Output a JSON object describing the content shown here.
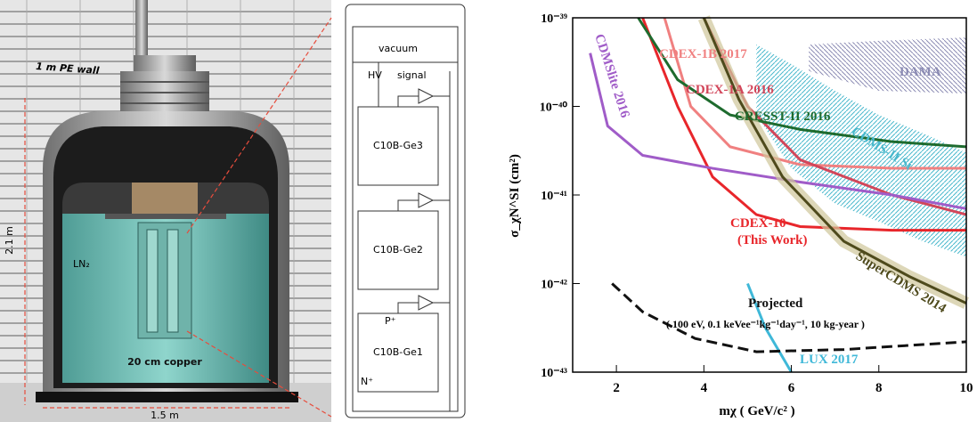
{
  "render": {
    "wall_label": "1 m PE wall",
    "height_label": "2.1 m",
    "liquid_label": "LN₂",
    "copper_label": "20 cm copper",
    "width_label": "1.5 m"
  },
  "schematic": {
    "vacuum": "vacuum",
    "hv": "HV",
    "signal": "signal",
    "detectors": [
      "C10B-Ge3",
      "C10B-Ge2",
      "C10B-Ge1"
    ],
    "p_plus": "P⁺",
    "n_plus": "N⁺"
  },
  "chart_data": {
    "type": "line",
    "x_label": "mχ ( GeV/c² )",
    "y_label": "σ_χN^SI (cm²)",
    "log_y": true,
    "xlim": [
      1,
      10
    ],
    "xticks": [
      2,
      4,
      6,
      8,
      10
    ],
    "ylim": [
      1e-43,
      1e-39
    ],
    "yticks": [
      {
        "value": 1e-43,
        "label": "10⁻⁴³"
      },
      {
        "value": 1e-42,
        "label": "10⁻⁴²"
      },
      {
        "value": 1e-41,
        "label": "10⁻⁴¹"
      },
      {
        "value": 1e-40,
        "label": "10⁻⁴⁰"
      },
      {
        "value": 1e-39,
        "label": "10⁻³⁹"
      }
    ],
    "series": [
      {
        "name": "CDEX-10",
        "color": "#e8262b",
        "x": [
          2.6,
          3.4,
          4.2,
          5.2,
          6.2,
          8.3,
          10
        ],
        "values": [
          1e-39,
          1e-40,
          1.6e-41,
          6e-42,
          4.4e-42,
          4e-42,
          4e-42
        ]
      },
      {
        "name": "CDEX-1B 2017",
        "color": "#f08080",
        "x": [
          3.1,
          3.7,
          4.6,
          6.2,
          8.3,
          10
        ],
        "values": [
          1e-39,
          1e-40,
          3.5e-41,
          2.2e-41,
          2e-41,
          2e-41
        ]
      },
      {
        "name": "CDEX-1A 2016",
        "color": "#d2465a",
        "x": [
          4.0,
          5.0,
          6.2,
          8.3,
          10
        ],
        "values": [
          1e-39,
          1e-40,
          2.5e-41,
          1e-41,
          6e-42
        ]
      },
      {
        "name": "CRESST-II 2016",
        "color": "#1e6b2e",
        "x": [
          2.5,
          3.4,
          4.6,
          6.2,
          8.3,
          10
        ],
        "values": [
          1e-39,
          2e-40,
          8e-41,
          5.5e-41,
          4e-41,
          3.5e-41
        ]
      },
      {
        "name": "CDMSlite 2016",
        "color": "#a05cc8",
        "x": [
          1.4,
          1.8,
          2.6,
          4.2,
          6.2,
          8.3,
          10
        ],
        "values": [
          4e-40,
          6e-41,
          2.8e-41,
          2e-41,
          1.4e-41,
          1e-41,
          7e-42
        ]
      },
      {
        "name": "SuperCDMS 2014",
        "color": "#4e4a1c",
        "x": [
          4.0,
          4.8,
          5.8,
          7.2,
          8.7,
          10
        ],
        "values": [
          1e-39,
          1.2e-40,
          1.6e-41,
          3e-42,
          1.2e-42,
          6e-43
        ]
      },
      {
        "name": "LUX 2017",
        "color": "#3fb8d8",
        "x": [
          5.0,
          5.4,
          6.0
        ],
        "values": [
          1e-42,
          3.2e-43,
          1e-43
        ]
      },
      {
        "name": "Projected",
        "color": "#111111",
        "style": "dashed",
        "x": [
          1.9,
          2.6,
          3.8,
          5.2,
          7.2,
          10
        ],
        "values": [
          1e-42,
          4.8e-43,
          2.4e-43,
          1.7e-43,
          1.8e-43,
          2.2e-43
        ]
      }
    ],
    "regions": [
      {
        "name": "DAMA",
        "color": "#8c8cb4",
        "x": [
          6.4,
          8,
          10
        ],
        "upper": [
          5e-40,
          5.5e-40,
          6e-40
        ],
        "lower": [
          2.5e-40,
          1.5e-40,
          1.4e-40
        ]
      },
      {
        "name": "CDMS-II Si",
        "color": "#49b8cc",
        "x": [
          5.2,
          6,
          7,
          8,
          9,
          10
        ],
        "upper": [
          5e-40,
          3e-40,
          1.5e-40,
          8e-41,
          5e-41,
          3e-41
        ],
        "lower": [
          8e-41,
          2e-41,
          8e-42,
          5e-42,
          3e-42,
          2e-42
        ]
      }
    ],
    "annotations": [
      "(This Work)",
      "( 100 eV, 0.1 keVee⁻¹kg⁻¹day⁻¹, 10 kg-year )"
    ]
  }
}
